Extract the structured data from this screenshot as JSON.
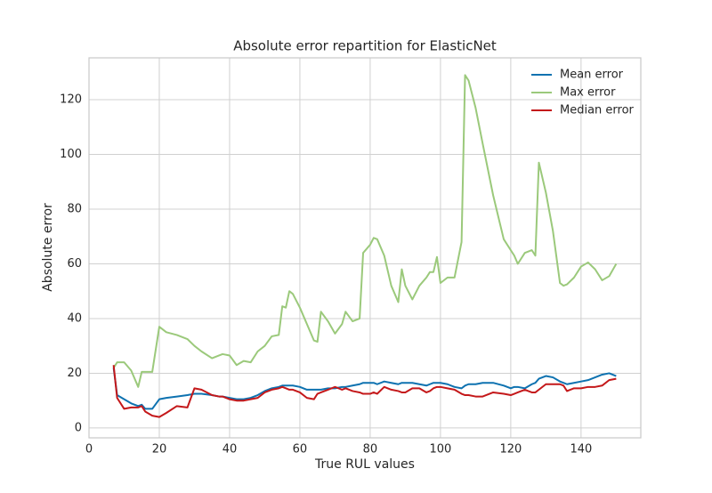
{
  "chart_data": {
    "type": "line",
    "title": "Absolute error repartition for ElasticNet",
    "xlabel": "True RUL values",
    "ylabel": "Absolute error",
    "x": [
      7,
      8,
      10,
      12,
      14,
      15,
      16,
      18,
      20,
      22,
      25,
      28,
      30,
      32,
      35,
      37,
      38,
      40,
      42,
      44,
      46,
      48,
      50,
      52,
      54,
      55,
      56,
      57,
      58,
      60,
      62,
      64,
      65,
      66,
      68,
      70,
      72,
      73,
      75,
      77,
      78,
      80,
      81,
      82,
      84,
      86,
      88,
      89,
      90,
      92,
      94,
      96,
      97,
      98,
      99,
      100,
      102,
      104,
      106,
      107,
      108,
      110,
      112,
      115,
      118,
      120,
      121,
      122,
      124,
      126,
      127,
      128,
      130,
      132,
      134,
      135,
      136,
      138,
      140,
      142,
      144,
      146,
      148,
      150
    ],
    "series": [
      {
        "name": "Mean error",
        "color": "#0e72b0",
        "values": [
          22,
          12,
          10.5,
          9,
          8,
          8.5,
          7,
          7,
          10.5,
          11,
          11.5,
          12,
          12.5,
          12.5,
          12,
          11.5,
          11.5,
          11,
          10.5,
          10.5,
          11,
          12,
          13.5,
          14.5,
          15,
          15.5,
          15.5,
          15.5,
          15.5,
          15,
          14,
          14,
          14,
          14,
          14.5,
          14.5,
          15,
          15,
          15.5,
          16,
          16.5,
          16.5,
          16.5,
          16,
          17,
          16.5,
          16,
          16.5,
          16.5,
          16.5,
          16,
          15.5,
          16,
          16.5,
          16.5,
          16.5,
          16,
          15,
          14.5,
          15.5,
          16,
          16,
          16.5,
          16.5,
          15.5,
          14.5,
          15,
          15,
          14.5,
          16,
          16.5,
          18,
          19,
          18.5,
          17,
          16.5,
          16,
          16.5,
          17,
          17.5,
          18.5,
          19.5,
          20,
          19
        ]
      },
      {
        "name": "Max error",
        "color": "#9bc97b",
        "values": [
          22,
          24,
          24,
          21,
          15,
          20.5,
          20.5,
          20.5,
          37,
          35,
          34,
          32.5,
          30,
          28,
          25.5,
          26.5,
          27,
          26.5,
          23,
          24.5,
          24,
          28,
          30,
          33.5,
          34,
          44.5,
          44,
          50,
          49,
          44,
          38,
          32,
          31.5,
          42.5,
          39,
          34.5,
          38,
          42.5,
          39,
          40,
          64,
          67,
          69.5,
          69,
          63,
          52,
          46,
          58,
          52,
          47,
          52,
          55,
          57,
          57,
          62.5,
          53,
          55,
          55,
          68,
          129,
          127,
          117,
          104,
          85,
          69,
          65,
          63,
          60,
          64,
          65,
          63,
          97,
          86,
          72,
          53,
          52,
          52.5,
          55,
          59,
          60.5,
          58,
          54,
          55.5,
          60
        ]
      },
      {
        "name": "Median error",
        "color": "#c4181a",
        "values": [
          23,
          11,
          7,
          7.5,
          7.5,
          8,
          6,
          4.5,
          4,
          5.5,
          8,
          7.5,
          14.5,
          14,
          12,
          11.5,
          11.5,
          10.5,
          10,
          10,
          10.5,
          11,
          13,
          14,
          14.5,
          15,
          14.5,
          14,
          14,
          13,
          11,
          10.5,
          12.5,
          13,
          14,
          15,
          14,
          14.5,
          13.5,
          13,
          12.5,
          12.5,
          13,
          12.5,
          15,
          14,
          13.5,
          13,
          13,
          14.5,
          14.5,
          13,
          13.5,
          14.5,
          15,
          15,
          14.5,
          14,
          12.5,
          12,
          12,
          11.5,
          11.5,
          13,
          12.5,
          12,
          12.5,
          13,
          14,
          13,
          13,
          14,
          16,
          16,
          16,
          15.5,
          13.5,
          14.5,
          14.5,
          15,
          15,
          15.5,
          17.5,
          18
        ]
      }
    ],
    "xlim": [
      0,
      157
    ],
    "xticks": [
      0,
      20,
      40,
      60,
      80,
      100,
      120,
      140
    ],
    "ylim": [
      -3.6,
      135.3
    ],
    "yticks": [
      0,
      20,
      40,
      60,
      80,
      100,
      120
    ],
    "grid": true,
    "legend": "upper right"
  }
}
